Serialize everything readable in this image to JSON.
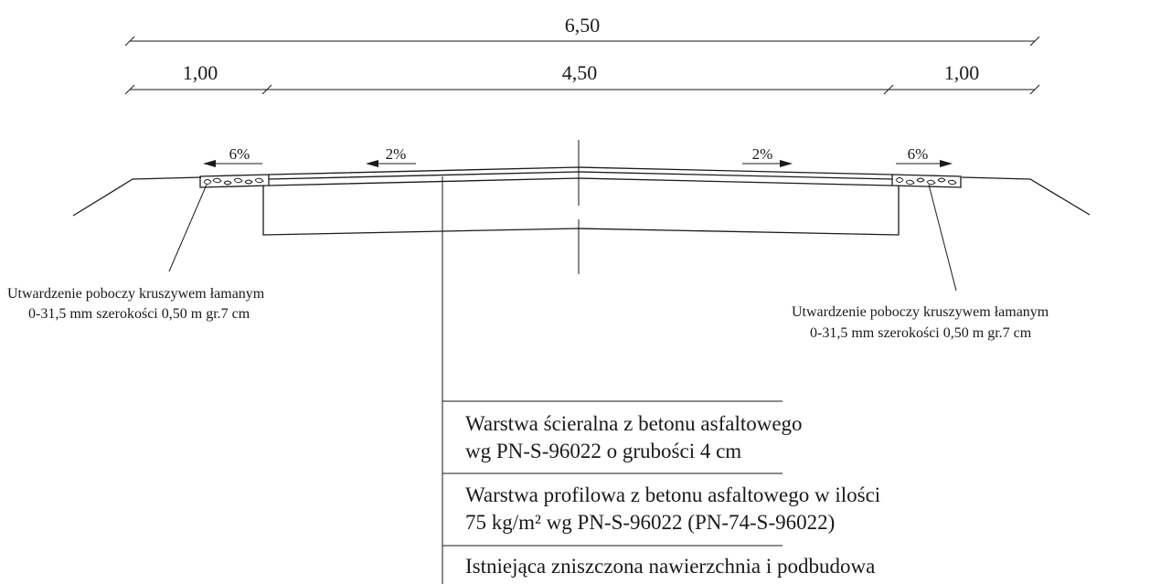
{
  "dimensions": {
    "total_width": "6,50",
    "left_shoulder": "1,00",
    "carriageway": "4,50",
    "right_shoulder": "1,00"
  },
  "slopes": {
    "left_shoulder": "6%",
    "left_lane": "2%",
    "right_lane": "2%",
    "right_shoulder": "6%"
  },
  "notes": {
    "left": {
      "line1": "Utwardzenie poboczy kruszywem łamanym",
      "line2": "0-31,5 mm szerokości 0,50 m gr.7 cm"
    },
    "right": {
      "line1": "Utwardzenie poboczy kruszywem łamanym",
      "line2": "0-31,5 mm szerokości 0,50 m gr.7 cm"
    }
  },
  "layers": [
    {
      "line1": "Warstwa ścieralna z betonu asfaltowego",
      "line2": "wg PN-S-96022 o grubości 4 cm"
    },
    {
      "line1": "Warstwa profilowa z betonu asfaltowego w ilości",
      "line2": "75 kg/m² wg PN-S-96022 (PN-74-S-96022)"
    },
    {
      "line1": "Istniejąca  zniszczona nawierzchnia i podbudowa",
      "line2": ""
    }
  ]
}
